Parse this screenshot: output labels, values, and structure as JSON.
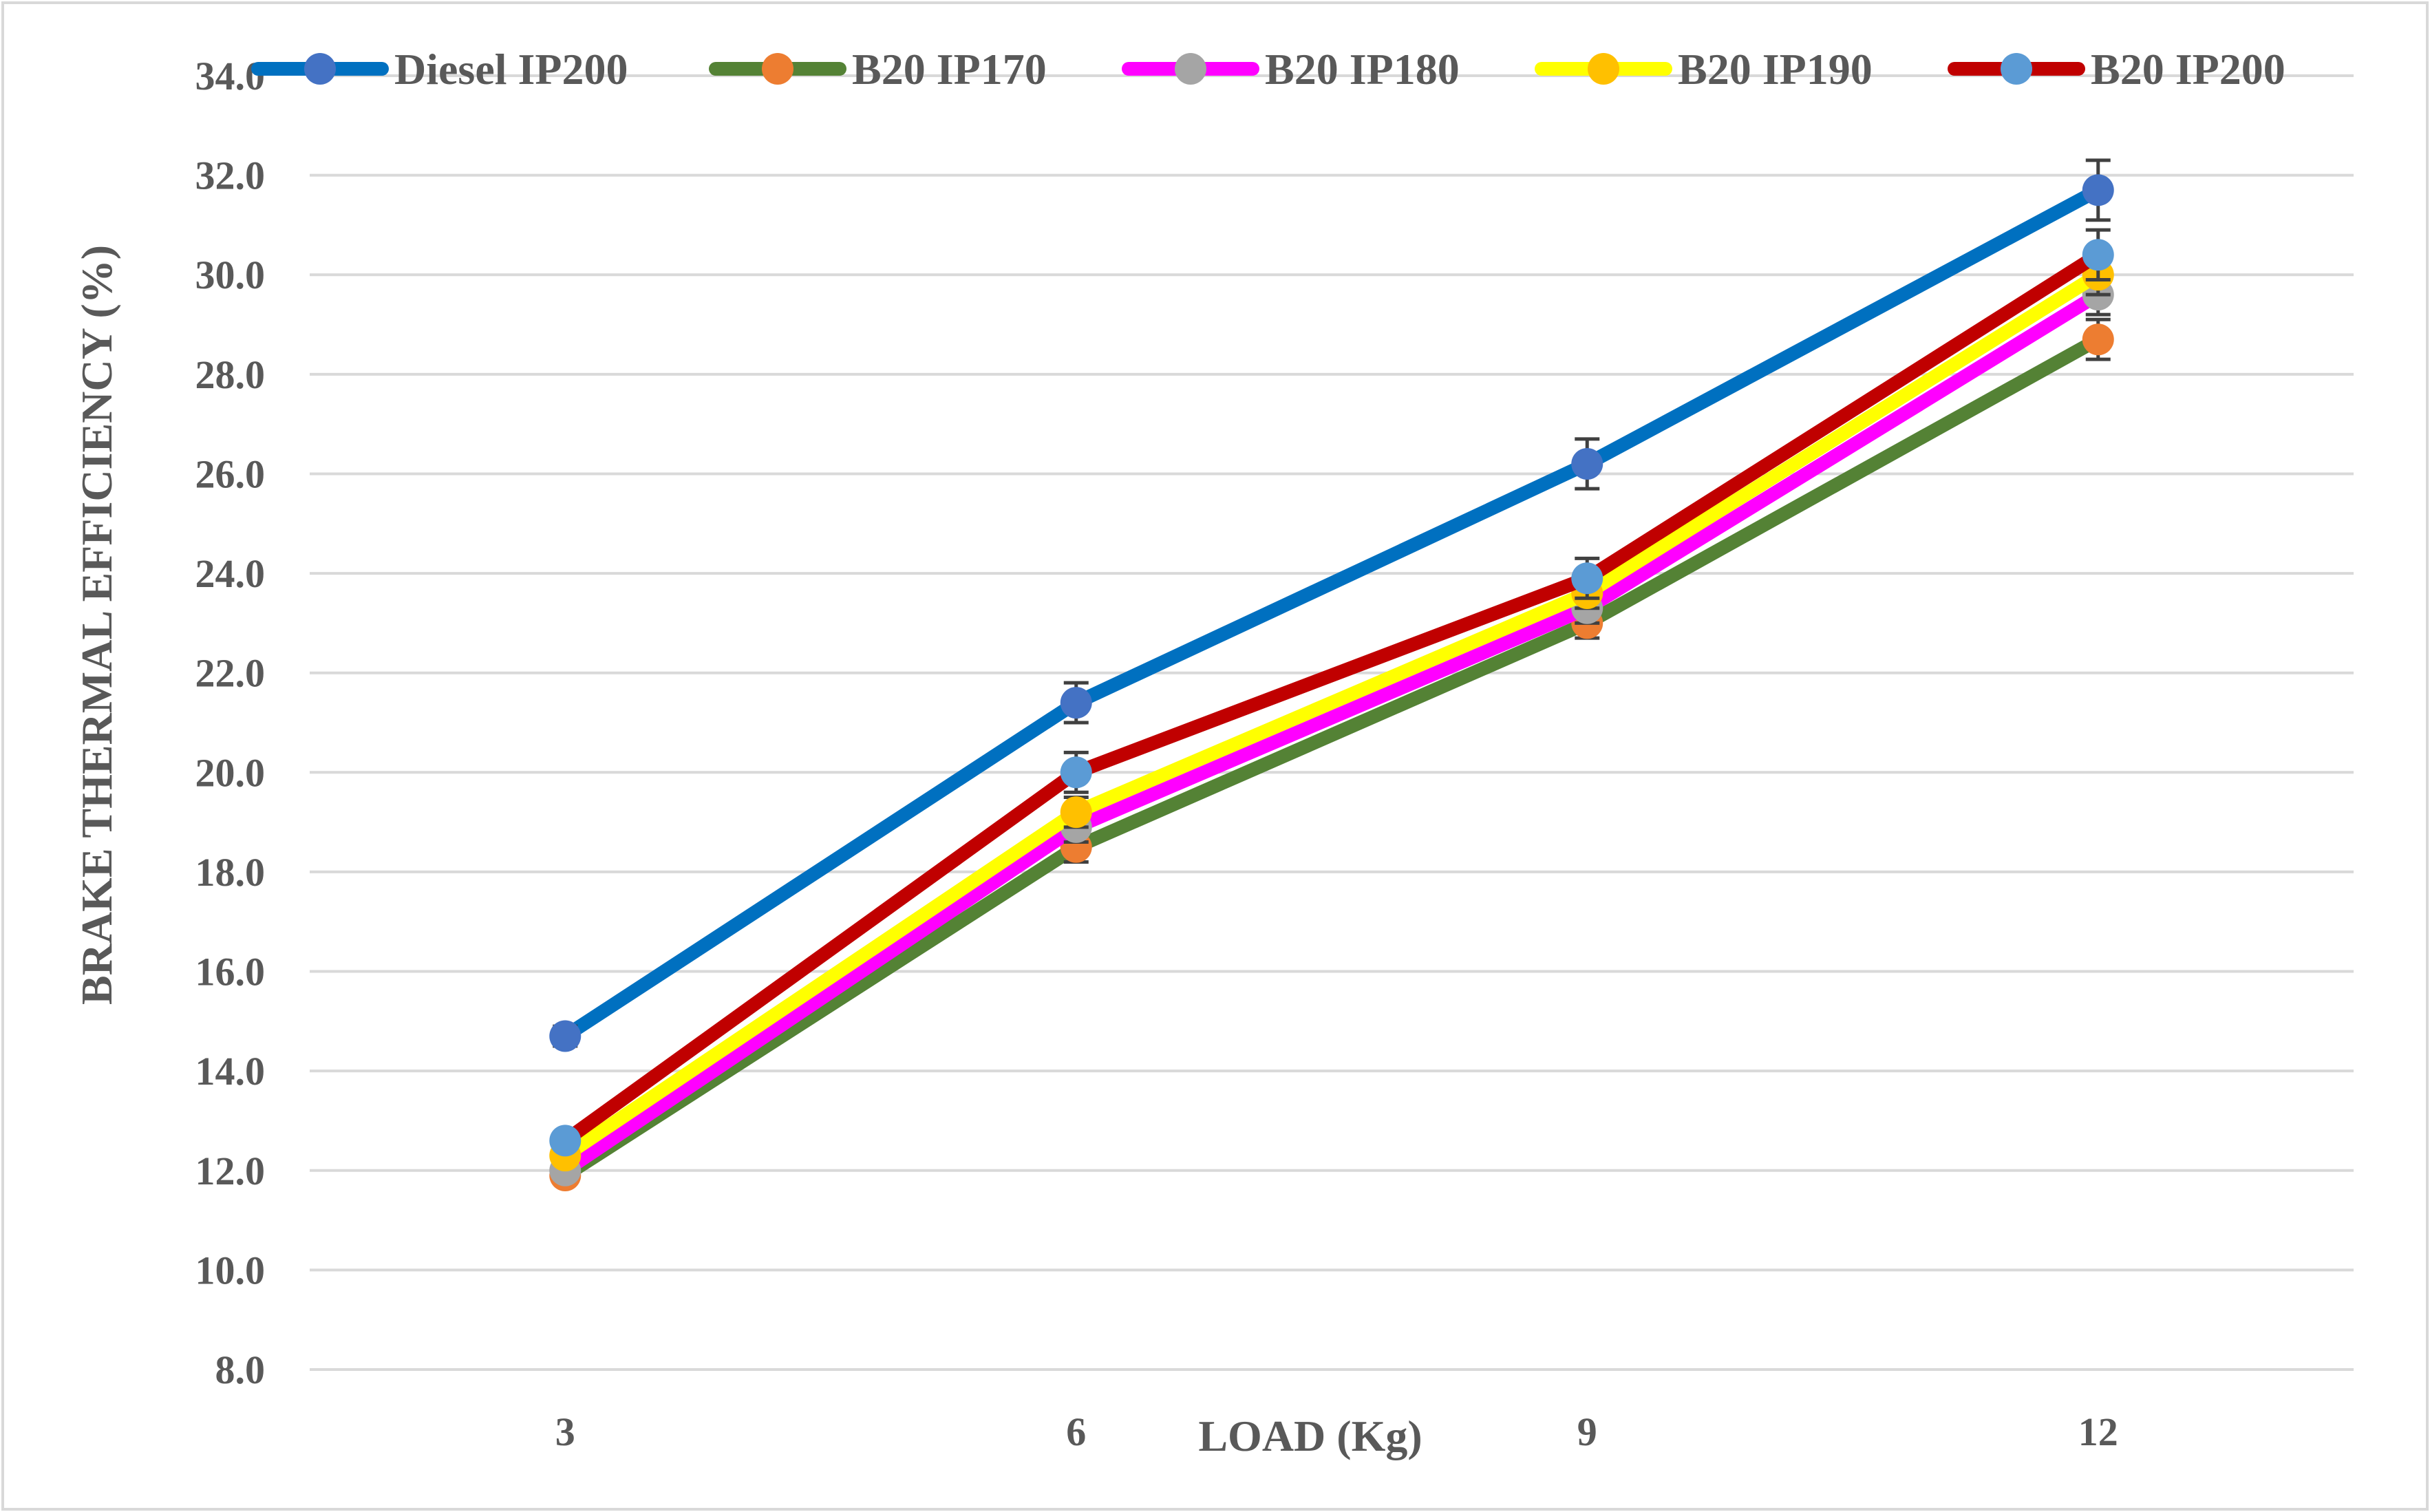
{
  "chart_data": {
    "type": "line",
    "title": "",
    "xlabel": "LOAD (Kg)",
    "ylabel": "BRAKE THERMAL EFFICIENCY (%)",
    "categories": [
      "3",
      "6",
      "9",
      "12"
    ],
    "ylim": [
      8.0,
      34.0
    ],
    "ytick_step": 2.0,
    "ytick_labels": [
      "8.0",
      "10.0",
      "12.0",
      "14.0",
      "16.0",
      "18.0",
      "20.0",
      "22.0",
      "24.0",
      "26.0",
      "28.0",
      "30.0",
      "32.0",
      "34.0"
    ],
    "grid": true,
    "legend_position": "top",
    "series": [
      {
        "name": "Diesel IP200",
        "values": [
          14.7,
          21.4,
          26.2,
          31.7
        ],
        "line_color": "#0070C0",
        "marker_color": "#4472C4",
        "error": [
          0.2,
          0.4,
          0.5,
          0.6
        ]
      },
      {
        "name": "B20 IP170",
        "values": [
          11.9,
          18.5,
          23.0,
          28.7
        ],
        "line_color": "#548235",
        "marker_color": "#ED7D31",
        "error": [
          0.0,
          0.3,
          0.3,
          0.4
        ]
      },
      {
        "name": "B20 IP180",
        "values": [
          12.0,
          18.9,
          23.3,
          29.6
        ],
        "line_color": "#FF00FF",
        "marker_color": "#A5A5A5",
        "error": [
          0.0,
          0.3,
          0.3,
          0.4
        ]
      },
      {
        "name": "B20 IP190",
        "values": [
          12.3,
          19.2,
          23.6,
          30.0
        ],
        "line_color": "#FFFF00",
        "marker_color": "#FFC000",
        "error": [
          0.0,
          0.3,
          0.3,
          0.4
        ]
      },
      {
        "name": "B20 IP200",
        "values": [
          12.6,
          20.0,
          23.9,
          30.4
        ],
        "line_color": "#C00000",
        "marker_color": "#5B9BD5",
        "error": [
          0.0,
          0.4,
          0.4,
          0.5
        ]
      }
    ]
  }
}
